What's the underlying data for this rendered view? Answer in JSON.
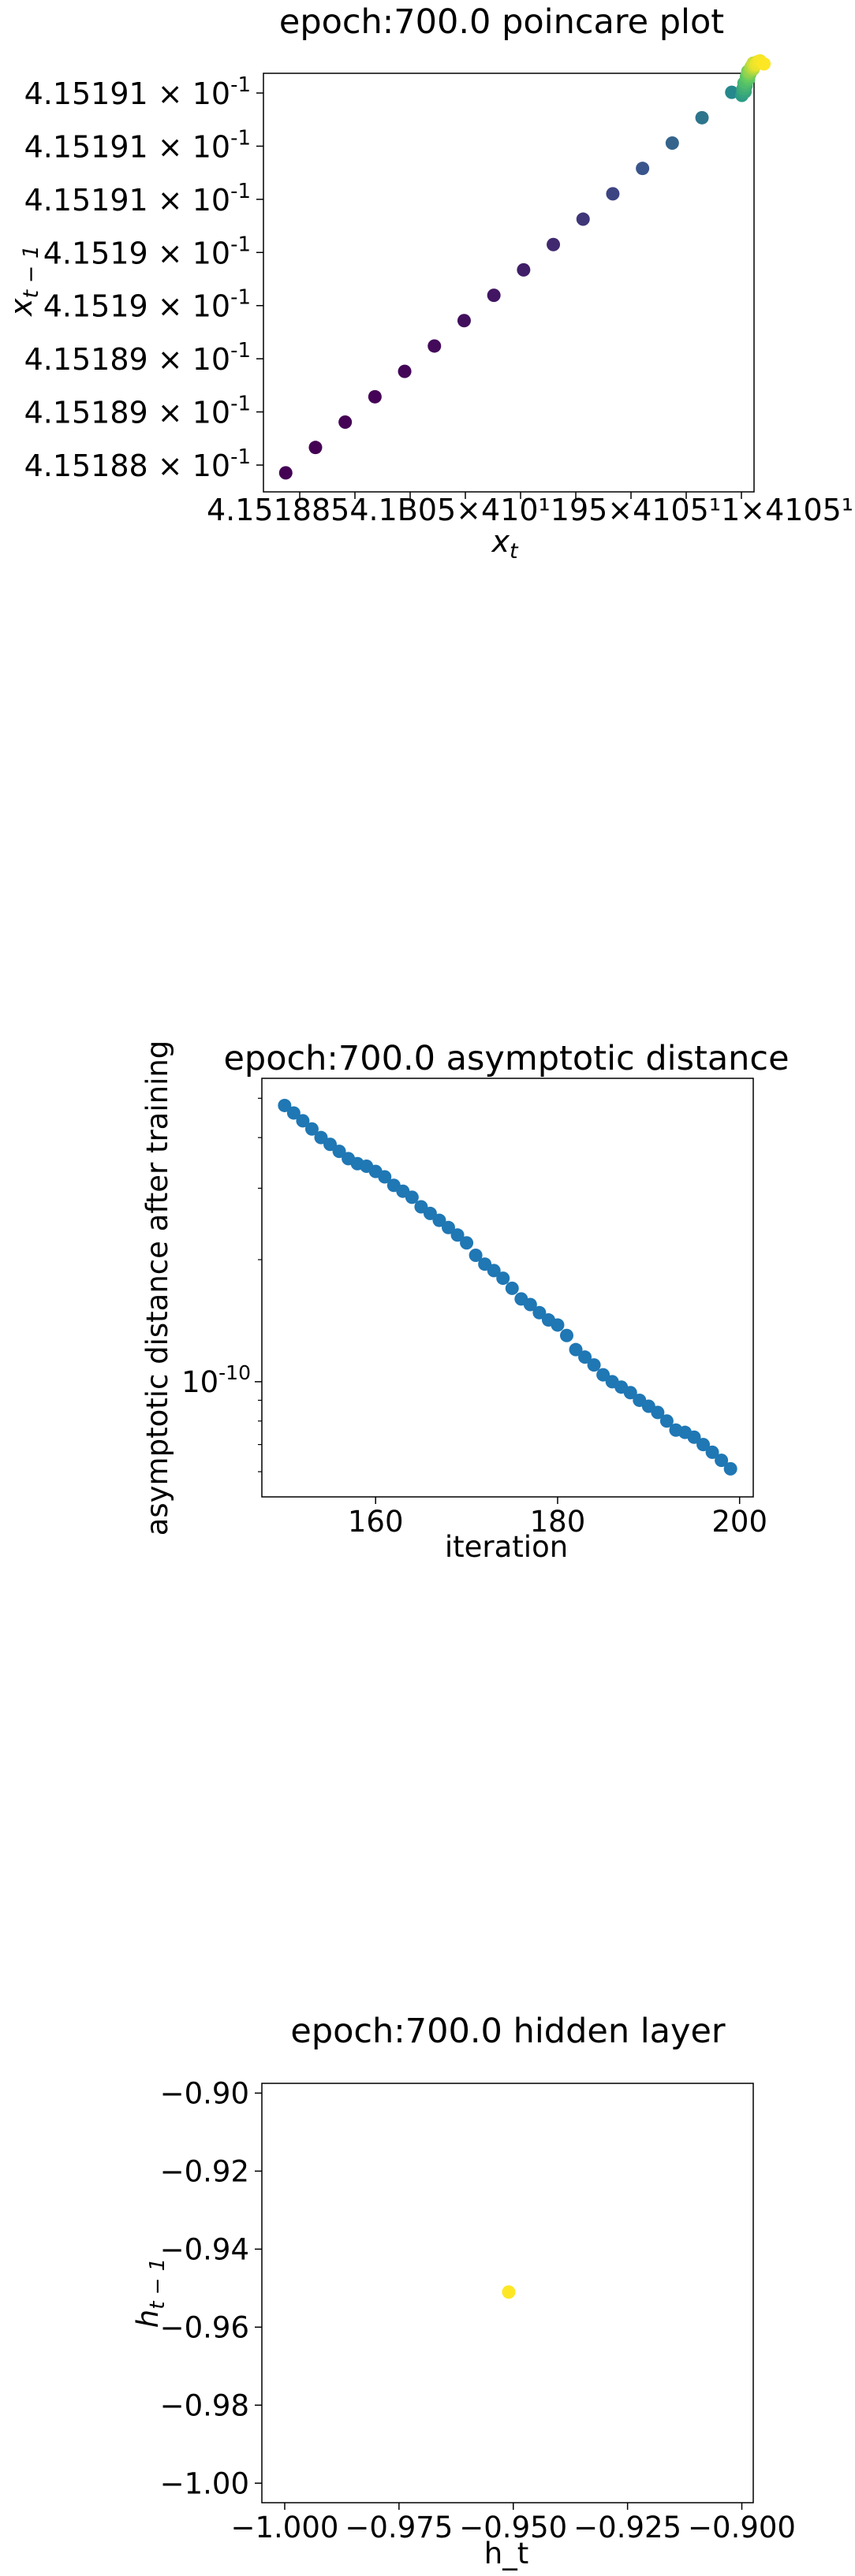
{
  "chart_data": [
    {
      "type": "scatter",
      "title": "epoch:700.0 poincare plot",
      "xlabel": "x_t",
      "ylabel": "x_{t-1}",
      "colormap": "viridis",
      "ytick_labels": [
        "4.15191 × 10^-1",
        "4.15191 × 10^-1",
        "4.15191 × 10^-1",
        "4.1519 × 10^-1",
        "4.1519 × 10^-1",
        "4.15189 × 10^-1",
        "4.15189 × 10^-1",
        "4.15188 × 10^-1"
      ],
      "xtick_labels_overlapping": "4.15188 ×10^-1 … 4.15191 ×10^-1 (illegible, overlapping)",
      "xlim": [
        0.41518785,
        0.41519115
      ],
      "ylim": [
        0.41518785,
        0.41519115
      ],
      "points": [
        {
          "x": 0.415188,
          "y": 0.415188
        },
        {
          "x": 0.4151882,
          "y": 0.4151882
        },
        {
          "x": 0.4151884,
          "y": 0.4151884
        },
        {
          "x": 0.4151886,
          "y": 0.4151886
        },
        {
          "x": 0.4151888,
          "y": 0.4151888
        },
        {
          "x": 0.415189,
          "y": 0.415189
        },
        {
          "x": 0.4151892,
          "y": 0.4151892
        },
        {
          "x": 0.4151894,
          "y": 0.4151894
        },
        {
          "x": 0.4151896,
          "y": 0.4151896
        },
        {
          "x": 0.4151898,
          "y": 0.4151898
        },
        {
          "x": 0.41519,
          "y": 0.41519
        },
        {
          "x": 0.4151902,
          "y": 0.4151902
        },
        {
          "x": 0.4151904,
          "y": 0.4151904
        },
        {
          "x": 0.4151906,
          "y": 0.4151906
        },
        {
          "x": 0.4151908,
          "y": 0.4151908
        },
        {
          "x": 0.415191,
          "y": 0.415191
        },
        {
          "x": 0.4151911,
          "y": 0.4151911
        }
      ]
    },
    {
      "type": "scatter",
      "title": "epoch:700.0 asymptotic distance",
      "xlabel": "iteration",
      "ylabel": "asymptotic distance after training",
      "yscale": "log",
      "color": "#1f77b4",
      "xticks": [
        160,
        180,
        200
      ],
      "ytick_labels": [
        "10^-10"
      ],
      "xlim": [
        147.5,
        201.5
      ],
      "ylim": [
        5.2e-11,
        5.6e-10
      ],
      "x": [
        150,
        151,
        152,
        153,
        154,
        155,
        156,
        157,
        158,
        159,
        160,
        161,
        162,
        163,
        164,
        165,
        166,
        167,
        168,
        169,
        170,
        171,
        172,
        173,
        174,
        175,
        176,
        177,
        178,
        179,
        180,
        181,
        182,
        183,
        184,
        185,
        186,
        187,
        188,
        189,
        190,
        191,
        192,
        193,
        194,
        195,
        196,
        197,
        198,
        199
      ],
      "y": [
        4.8e-10,
        4.6e-10,
        4.4e-10,
        4.2e-10,
        4e-10,
        3.85e-10,
        3.7e-10,
        3.55e-10,
        3.45e-10,
        3.4e-10,
        3.3e-10,
        3.2e-10,
        3.05e-10,
        2.95e-10,
        2.85e-10,
        2.7e-10,
        2.6e-10,
        2.5e-10,
        2.4e-10,
        2.3e-10,
        2.2e-10,
        2.05e-10,
        1.95e-10,
        1.88e-10,
        1.8e-10,
        1.7e-10,
        1.6e-10,
        1.55e-10,
        1.48e-10,
        1.42e-10,
        1.38e-10,
        1.3e-10,
        1.2e-10,
        1.15e-10,
        1.1e-10,
        1.04e-10,
        1e-10,
        9.7e-11,
        9.4e-11,
        9e-11,
        8.7e-11,
        8.4e-11,
        8e-11,
        7.6e-11,
        7.5e-11,
        7.3e-11,
        7e-11,
        6.7e-11,
        6.4e-11,
        6.1e-11
      ]
    },
    {
      "type": "scatter",
      "title": "epoch:700.0 hidden layer",
      "xlabel": "h_t",
      "ylabel": "h_{t-1}",
      "color": "#fde725",
      "xticks": [
        "-1.000",
        "-0.975",
        "-0.950",
        "-0.925",
        "-0.900"
      ],
      "yticks": [
        "-0.90",
        "-0.92",
        "-0.94",
        "-0.96",
        "-0.98",
        "-1.00"
      ],
      "xlim": [
        -1.005,
        -0.8975
      ],
      "ylim": [
        -1.005,
        -0.8975
      ],
      "points": [
        {
          "x": -0.951,
          "y": -0.951
        }
      ]
    }
  ]
}
